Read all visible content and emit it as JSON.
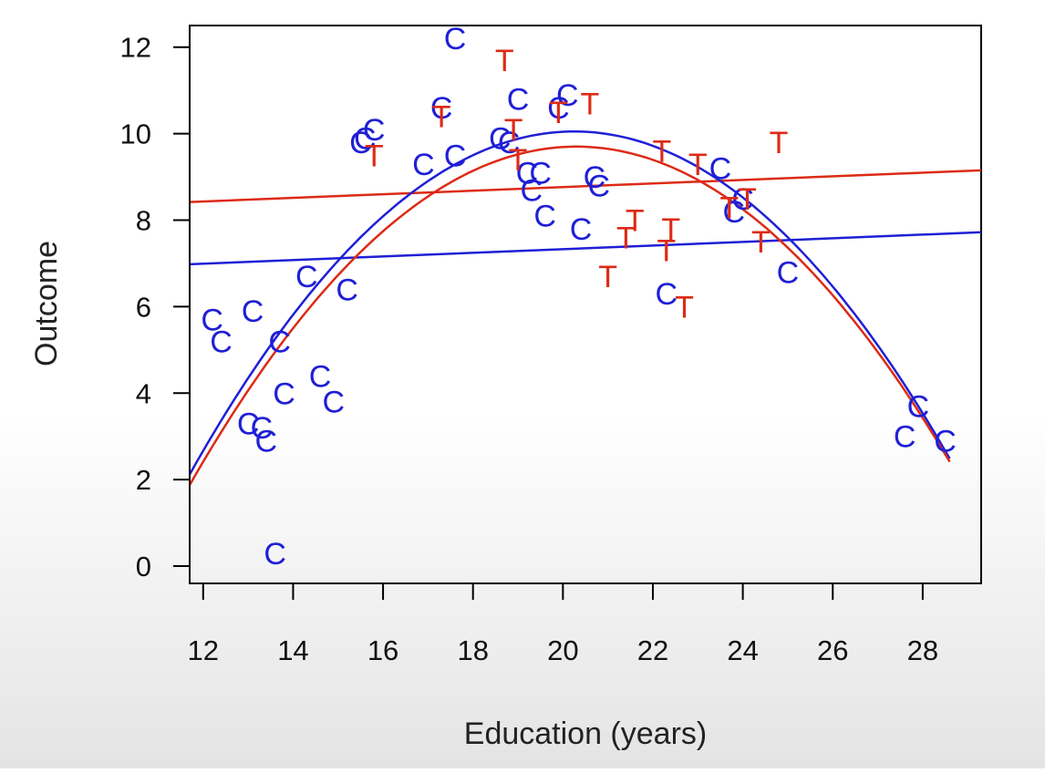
{
  "chart_data": {
    "type": "scatter",
    "xlabel": "Education (years)",
    "ylabel": "Outcome",
    "xlim": [
      11.7,
      29.3
    ],
    "ylim": [
      -0.4,
      12.5
    ],
    "xticks": [
      12,
      14,
      16,
      18,
      20,
      22,
      24,
      26,
      28
    ],
    "yticks": [
      0,
      2,
      4,
      6,
      8,
      10,
      12
    ],
    "grid": false,
    "series": [
      {
        "name": "C",
        "color": "#1f1fd6",
        "marker": "C",
        "points": [
          [
            12.2,
            5.7
          ],
          [
            12.4,
            5.2
          ],
          [
            13.1,
            5.9
          ],
          [
            13.7,
            5.2
          ],
          [
            14.3,
            6.7
          ],
          [
            15.2,
            6.4
          ],
          [
            13.0,
            3.3
          ],
          [
            13.3,
            3.2
          ],
          [
            13.4,
            2.9
          ],
          [
            13.8,
            4.0
          ],
          [
            14.6,
            4.4
          ],
          [
            14.9,
            3.8
          ],
          [
            13.6,
            0.3
          ],
          [
            15.5,
            9.8
          ],
          [
            15.6,
            9.9
          ],
          [
            15.8,
            10.1
          ],
          [
            16.9,
            9.3
          ],
          [
            17.3,
            10.6
          ],
          [
            17.6,
            9.5
          ],
          [
            17.6,
            12.2
          ],
          [
            18.6,
            9.9
          ],
          [
            18.8,
            9.8
          ],
          [
            19.0,
            10.8
          ],
          [
            19.2,
            9.1
          ],
          [
            19.3,
            8.7
          ],
          [
            19.5,
            9.1
          ],
          [
            19.6,
            8.1
          ],
          [
            19.9,
            10.6
          ],
          [
            20.1,
            10.9
          ],
          [
            20.4,
            7.8
          ],
          [
            20.7,
            9.0
          ],
          [
            20.8,
            8.8
          ],
          [
            22.3,
            6.3
          ],
          [
            23.5,
            9.2
          ],
          [
            23.8,
            8.2
          ],
          [
            24.0,
            8.5
          ],
          [
            25.0,
            6.8
          ],
          [
            27.6,
            3.0
          ],
          [
            27.9,
            3.7
          ],
          [
            28.5,
            2.9
          ]
        ]
      },
      {
        "name": "T",
        "color": "#dd2a16",
        "marker": "T",
        "points": [
          [
            15.8,
            9.5
          ],
          [
            17.3,
            10.4
          ],
          [
            18.7,
            11.7
          ],
          [
            18.9,
            10.1
          ],
          [
            19.0,
            9.4
          ],
          [
            19.9,
            10.5
          ],
          [
            20.6,
            10.7
          ],
          [
            21.0,
            6.7
          ],
          [
            21.4,
            7.6
          ],
          [
            21.6,
            8.0
          ],
          [
            22.2,
            9.6
          ],
          [
            22.3,
            7.3
          ],
          [
            22.4,
            7.8
          ],
          [
            22.7,
            6.0
          ],
          [
            23.0,
            9.3
          ],
          [
            23.7,
            8.3
          ],
          [
            24.1,
            8.5
          ],
          [
            24.4,
            7.5
          ],
          [
            24.8,
            9.8
          ]
        ]
      }
    ],
    "lines": [
      {
        "kind": "linear",
        "color": "#1f1fd6",
        "x": [
          11.7,
          29.3
        ],
        "y": [
          6.98,
          7.72
        ]
      },
      {
        "kind": "linear",
        "color": "#dd2a16",
        "x": [
          11.7,
          29.3
        ],
        "y": [
          8.42,
          9.15
        ]
      },
      {
        "kind": "quadratic",
        "color": "#1f1fd6",
        "vertex_x": 20.25,
        "vertex_y": 10.05,
        "curvature": -0.1085,
        "x_range": [
          11.7,
          28.6
        ]
      },
      {
        "kind": "quadratic",
        "color": "#dd2a16",
        "vertex_x": 20.3,
        "vertex_y": 9.7,
        "curvature": -0.1058,
        "x_range": [
          11.7,
          28.6
        ]
      }
    ]
  }
}
